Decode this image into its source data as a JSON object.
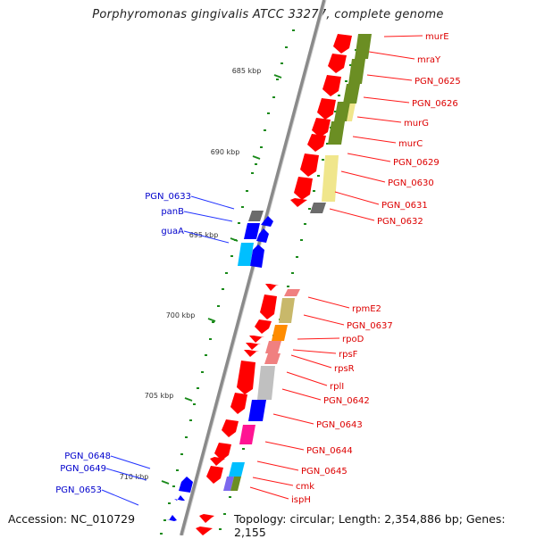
{
  "title": "Porphyromonas gingivalis ATCC 33277, complete genome",
  "footer": {
    "accession": "Accession: NC_010729",
    "summary": "Topology: circular; Length: 2,354,886 bp; Genes: 2,155"
  },
  "colors": {
    "forward_gene": "#ff0000",
    "reverse_gene": "#0000ff",
    "forward_label": "#dd0000",
    "reverse_label": "#0000cc",
    "backbone": "#888888",
    "tick": "#1a8a1a"
  },
  "ticks": [
    "685 kbp",
    "690 kbp",
    "695 kbp",
    "700 kbp",
    "705 kbp",
    "710 kbp"
  ],
  "forward_labels": [
    "murE",
    "mraY",
    "PGN_0625",
    "PGN_0626",
    "murG",
    "murC",
    "PGN_0629",
    "PGN_0630",
    "PGN_0631",
    "PGN_0632",
    "rpmE2",
    "PGN_0637",
    "rpoD",
    "rpsF",
    "rpsR",
    "rplI",
    "PGN_0642",
    "PGN_0643",
    "PGN_0644",
    "PGN_0645",
    "cmk",
    "ispH"
  ],
  "reverse_labels": [
    "PGN_0633",
    "panB",
    "guaA",
    "PGN_0648",
    "PGN_0649",
    "PGN_0653"
  ],
  "cog_colors": [
    "#6b8e23",
    "#f0e68c",
    "#6b6b6b",
    "#0000ff",
    "#00bfff",
    "#c8b86a",
    "#ff8c00",
    "#f08080",
    "#c0c0c0",
    "#ff1493",
    "#7b68ee"
  ]
}
